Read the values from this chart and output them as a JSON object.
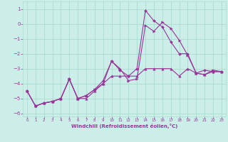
{
  "xlabel": "Windchill (Refroidissement éolien,°C)",
  "ylabel": "",
  "background_color": "#cceee8",
  "grid_color": "#aaddcc",
  "line_color": "#993399",
  "xlim": [
    -0.5,
    23.5
  ],
  "ylim": [
    -6.2,
    1.5
  ],
  "yticks": [
    1,
    0,
    -1,
    -2,
    -3,
    -4,
    -5,
    -6
  ],
  "xticks": [
    0,
    1,
    2,
    3,
    4,
    5,
    6,
    7,
    8,
    9,
    10,
    11,
    12,
    13,
    14,
    15,
    16,
    17,
    18,
    19,
    20,
    21,
    22,
    23
  ],
  "line1_x": [
    0,
    1,
    2,
    3,
    4,
    5,
    6,
    7,
    8,
    9,
    10,
    11,
    12,
    13,
    14,
    15,
    16,
    17,
    18,
    19,
    20,
    21,
    22,
    23
  ],
  "line1_y": [
    -4.5,
    -5.5,
    -5.3,
    -5.2,
    -5.0,
    -3.7,
    -5.0,
    -4.8,
    -4.4,
    -4.0,
    -2.5,
    -3.0,
    -3.8,
    -3.7,
    -0.1,
    -0.5,
    0.1,
    -0.3,
    -1.1,
    -2.1,
    -3.3,
    -3.4,
    -3.1,
    -3.2
  ],
  "line2_x": [
    0,
    1,
    2,
    3,
    4,
    5,
    6,
    7,
    8,
    9,
    10,
    11,
    12,
    13,
    14,
    15,
    16,
    17,
    18,
    19,
    20,
    21,
    22,
    23
  ],
  "line2_y": [
    -4.5,
    -5.5,
    -5.3,
    -5.2,
    -5.0,
    -3.7,
    -5.0,
    -4.8,
    -4.4,
    -3.8,
    -2.5,
    -3.1,
    -3.5,
    -3.0,
    0.9,
    0.2,
    -0.2,
    -1.2,
    -2.0,
    -2.0,
    -3.3,
    -3.1,
    -3.2,
    -3.2
  ],
  "line3_x": [
    0,
    1,
    2,
    3,
    4,
    5,
    6,
    7,
    8,
    9,
    10,
    11,
    12,
    13,
    14,
    15,
    16,
    17,
    18,
    19,
    20,
    21,
    22,
    23
  ],
  "line3_y": [
    -4.5,
    -5.5,
    -5.3,
    -5.2,
    -5.0,
    -3.7,
    -5.0,
    -5.0,
    -4.5,
    -4.0,
    -3.5,
    -3.5,
    -3.5,
    -3.5,
    -3.0,
    -3.0,
    -3.0,
    -3.0,
    -3.5,
    -3.0,
    -3.3,
    -3.4,
    -3.2,
    -3.2
  ]
}
